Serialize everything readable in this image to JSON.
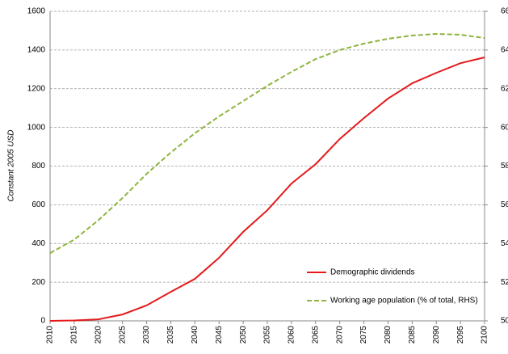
{
  "chart_data": {
    "type": "line",
    "x": [
      2010,
      2015,
      2020,
      2025,
      2030,
      2035,
      2040,
      2045,
      2050,
      2055,
      2060,
      2065,
      2070,
      2075,
      2080,
      2085,
      2090,
      2095,
      2100
    ],
    "xlim": [
      2010,
      2100
    ],
    "xticks": [
      2010,
      2015,
      2020,
      2025,
      2030,
      2035,
      2040,
      2045,
      2050,
      2055,
      2060,
      2065,
      2070,
      2075,
      2080,
      2085,
      2090,
      2095,
      2100
    ],
    "ylabel": "Constant 2005 USD",
    "ylim": [
      0,
      1600
    ],
    "yticks": [
      0,
      200,
      400,
      600,
      800,
      1000,
      1200,
      1400,
      1600
    ],
    "y2lim": [
      50,
      66
    ],
    "y2ticks": [
      50,
      52,
      54,
      56,
      58,
      60,
      62,
      64,
      66
    ],
    "grid": true,
    "legend": "lower right",
    "series": [
      {
        "name": "Demographic dividends",
        "color": "#e41a1c",
        "dash": false,
        "values": [
          0,
          2,
          8,
          33,
          80,
          150,
          217,
          326,
          460,
          572,
          710,
          810,
          940,
          1048,
          1149,
          1228,
          1282,
          1332,
          1362
        ]
      },
      {
        "name": "Working age population (% of total, RHS)",
        "color": "#8db43e",
        "dash": true,
        "axis": "y2",
        "values": [
          53.5,
          54.2,
          55.2,
          56.35,
          57.6,
          58.7,
          59.7,
          60.57,
          61.36,
          62.15,
          62.87,
          63.53,
          64.0,
          64.33,
          64.58,
          64.75,
          64.83,
          64.79,
          64.62
        ]
      }
    ]
  }
}
